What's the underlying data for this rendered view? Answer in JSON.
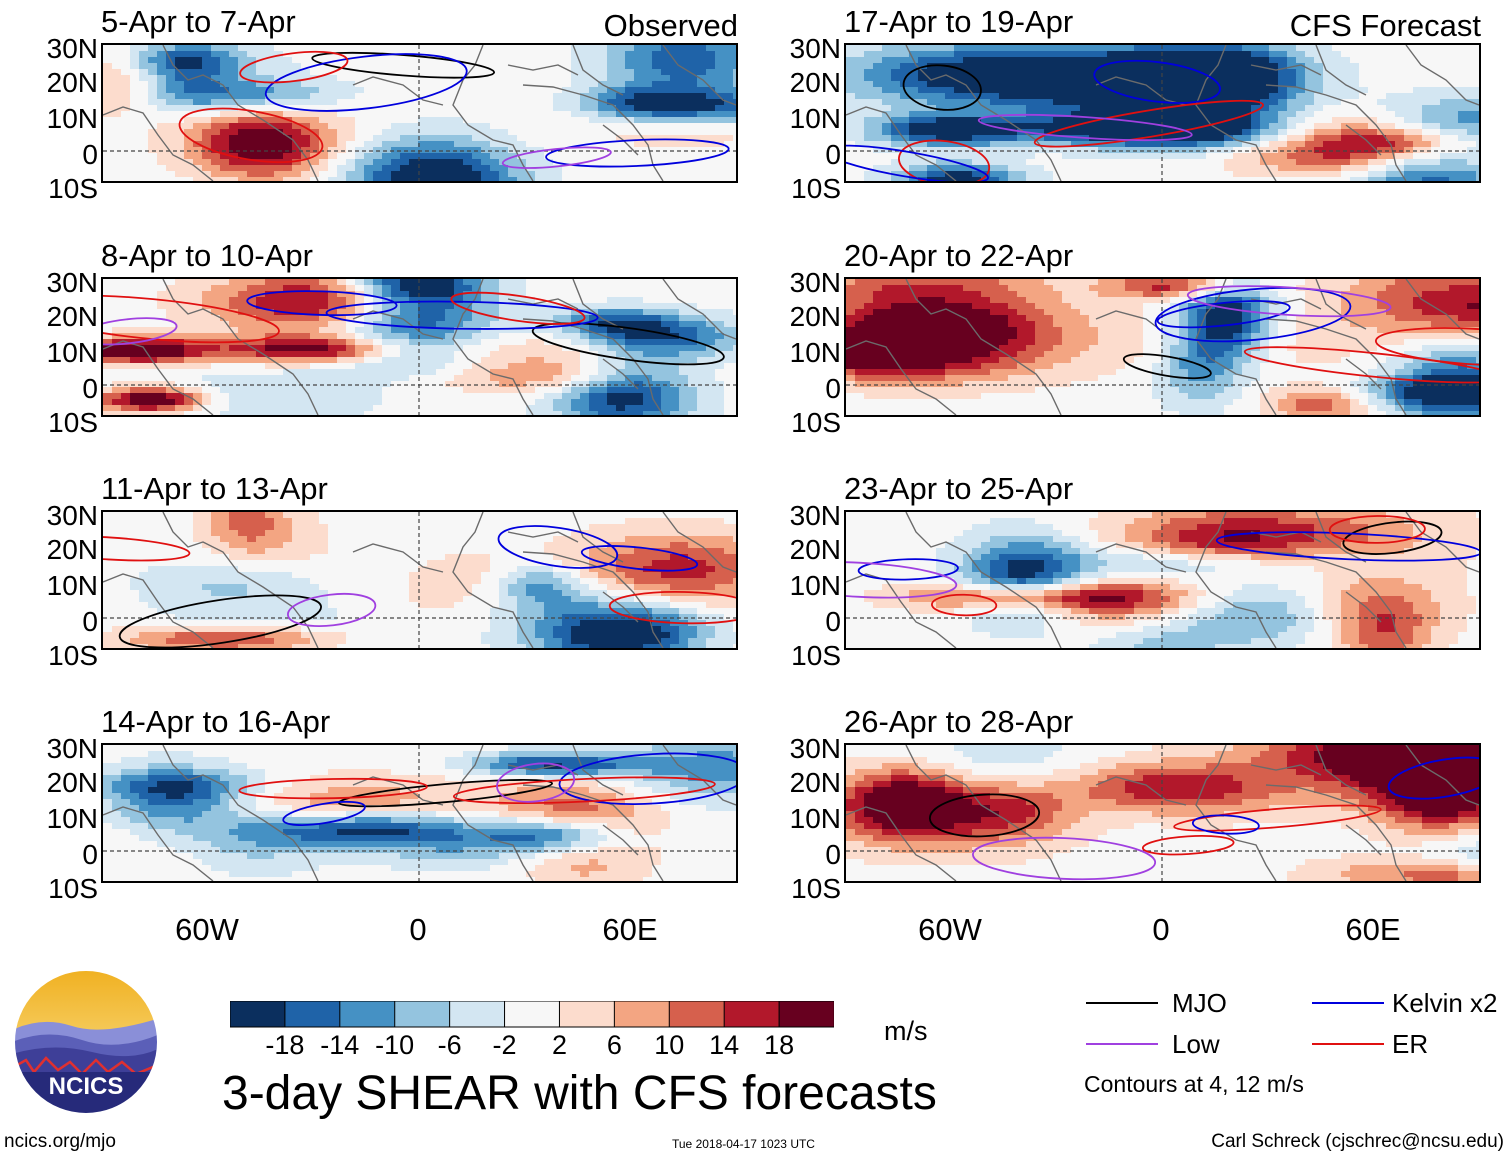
{
  "panels": [
    {
      "title": "5-Apr to 7-Apr",
      "tag": "Observed"
    },
    {
      "title": "17-Apr to 19-Apr",
      "tag": "CFS Forecast"
    },
    {
      "title": "8-Apr to 10-Apr",
      "tag": ""
    },
    {
      "title": "20-Apr to 22-Apr",
      "tag": ""
    },
    {
      "title": "11-Apr to 13-Apr",
      "tag": ""
    },
    {
      "title": "23-Apr to 25-Apr",
      "tag": ""
    },
    {
      "title": "14-Apr to 16-Apr",
      "tag": ""
    },
    {
      "title": "26-Apr to 28-Apr",
      "tag": ""
    }
  ],
  "lat_labels": [
    "30N",
    "20N",
    "10N",
    "0",
    "10S"
  ],
  "lon_labels": [
    "60W",
    "0",
    "60E"
  ],
  "colorbar": {
    "unit": "m/s",
    "ticks": [
      "-18",
      "-14",
      "-10",
      "-6",
      "-2",
      "2",
      "6",
      "10",
      "14",
      "18"
    ],
    "colors": [
      "#0b2f5e",
      "#1f63a8",
      "#4591c4",
      "#94c4df",
      "#d3e6f2",
      "#f7f7f7",
      "#fcdccd",
      "#f3a582",
      "#d6604d",
      "#b2182b",
      "#67001f"
    ]
  },
  "legend": {
    "items": [
      {
        "label": "MJO",
        "color": "#000000"
      },
      {
        "label": "Kelvin x2",
        "color": "#0000dd"
      },
      {
        "label": "Low",
        "color": "#a040e0"
      },
      {
        "label": "ER",
        "color": "#e01010"
      }
    ],
    "note": "Contours at 4, 12 m/s"
  },
  "logo": {
    "text": "NCICS"
  },
  "main_title": "3-day SHEAR with CFS forecasts",
  "footer": {
    "left": "ncics.org/mjo",
    "center": "Tue 2018-04-17 1023 UTC",
    "right": "Carl Schreck (cjschrec@ncsu.edu)"
  }
}
